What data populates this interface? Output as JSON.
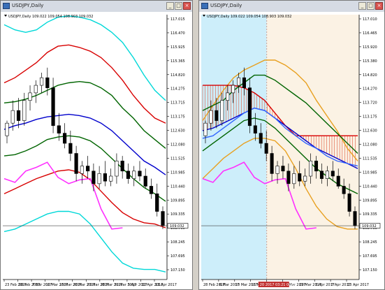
{
  "windows": [
    {
      "title": "USDJPY,Daily"
    },
    {
      "title": "USDJPY,Daily"
    }
  ],
  "chart_data": [
    {
      "type": "line",
      "info": "USDJPY,Daily  109.022 109.054 108.903 109.032",
      "price_labels": [
        "117.015",
        "116.470",
        "115.925",
        "115.365",
        "114.820",
        "114.275",
        "113.715",
        "113.175",
        "112.630",
        "112.080",
        "111.525",
        "110.985",
        "110.440",
        "109.895",
        "109.335",
        "108.790",
        "108.245",
        "107.695",
        "107.150"
      ],
      "date_labels": [
        "23 Feb 2017",
        "28 Feb 2017",
        "7 Mar 2017",
        "10 Mar 2017",
        "15 Mar 2017",
        "20 Mar 2017",
        "23 Mar 2017",
        "28 Mar 2017",
        "31 Mar 2017",
        "5 Apr 2017",
        "10 Apr 2017",
        "13 Apr 2017"
      ],
      "current_price": "109.032",
      "ylim": [
        106.9,
        117.4
      ],
      "series": [
        {
          "color": "#00d8d8",
          "values": [
            117.0,
            116.8,
            116.7,
            116.8,
            117.1,
            117.3,
            117.35,
            117.3,
            117.2,
            117.0,
            116.7,
            116.3,
            115.7,
            115.0,
            114.4,
            114.0
          ]
        },
        {
          "color": "#d80000",
          "values": [
            114.7,
            114.9,
            115.2,
            115.5,
            115.9,
            116.15,
            116.2,
            116.1,
            115.95,
            115.7,
            115.3,
            114.8,
            114.2,
            113.7,
            113.3,
            113.1
          ]
        },
        {
          "color": "#006400",
          "values": [
            113.9,
            113.95,
            114.05,
            114.2,
            114.4,
            114.6,
            114.7,
            114.75,
            114.7,
            114.5,
            114.2,
            113.7,
            113.3,
            112.8,
            112.45,
            112.1
          ]
        },
        {
          "color": "#0000cc",
          "values": [
            112.85,
            113.0,
            113.1,
            113.25,
            113.35,
            113.4,
            113.45,
            113.4,
            113.3,
            113.1,
            112.8,
            112.4,
            112.0,
            111.6,
            111.35,
            111.05
          ]
        },
        {
          "color": "#006400",
          "values": [
            111.8,
            111.85,
            112.0,
            112.2,
            112.45,
            112.55,
            112.6,
            112.55,
            112.4,
            112.1,
            111.7,
            111.3,
            110.9,
            110.55,
            110.3,
            110.0
          ]
        },
        {
          "color": "#d80000",
          "values": [
            110.3,
            110.5,
            110.7,
            110.9,
            111.05,
            111.2,
            111.25,
            111.15,
            110.85,
            110.4,
            109.95,
            109.55,
            109.3,
            109.15,
            109.1,
            108.95
          ]
        },
        {
          "color": "#00d8d8",
          "values": [
            108.8,
            108.9,
            109.1,
            109.3,
            109.5,
            109.6,
            109.6,
            109.5,
            109.1,
            108.55,
            108.0,
            107.55,
            107.35,
            107.3,
            107.3,
            107.2
          ]
        },
        {
          "color": "#ff30ff",
          "values": [
            110.9,
            110.75,
            111.2,
            111.35,
            111.55,
            110.95,
            110.7,
            110.85,
            110.9,
            109.7,
            108.9,
            108.95,
            null,
            null,
            null,
            null
          ]
        }
      ],
      "candles": [
        {
          "o": 112.6,
          "h": 113.2,
          "l": 112.3,
          "c": 113.1
        },
        {
          "o": 113.1,
          "h": 114.0,
          "l": 112.8,
          "c": 113.6
        },
        {
          "o": 113.6,
          "h": 114.1,
          "l": 112.9,
          "c": 113.2
        },
        {
          "o": 113.2,
          "h": 114.3,
          "l": 113.0,
          "c": 114.0
        },
        {
          "o": 114.0,
          "h": 114.6,
          "l": 113.6,
          "c": 114.3
        },
        {
          "o": 114.3,
          "h": 114.8,
          "l": 113.9,
          "c": 114.6
        },
        {
          "o": 114.6,
          "h": 115.1,
          "l": 114.3,
          "c": 114.9
        },
        {
          "o": 114.9,
          "h": 115.3,
          "l": 114.2,
          "c": 114.5
        },
        {
          "o": 114.5,
          "h": 114.9,
          "l": 112.7,
          "c": 113.0
        },
        {
          "o": 113.0,
          "h": 113.5,
          "l": 112.4,
          "c": 112.7
        },
        {
          "o": 112.7,
          "h": 113.1,
          "l": 112.1,
          "c": 112.3
        },
        {
          "o": 112.3,
          "h": 112.8,
          "l": 111.6,
          "c": 111.9
        },
        {
          "o": 111.9,
          "h": 112.2,
          "l": 110.8,
          "c": 111.1
        },
        {
          "o": 111.1,
          "h": 111.6,
          "l": 110.7,
          "c": 111.4
        },
        {
          "o": 111.4,
          "h": 111.8,
          "l": 110.9,
          "c": 111.2
        },
        {
          "o": 111.2,
          "h": 111.5,
          "l": 110.4,
          "c": 110.7
        },
        {
          "o": 110.7,
          "h": 111.4,
          "l": 110.5,
          "c": 111.1
        },
        {
          "o": 111.1,
          "h": 111.6,
          "l": 110.6,
          "c": 110.8
        },
        {
          "o": 110.8,
          "h": 111.3,
          "l": 110.6,
          "c": 111.0
        },
        {
          "o": 111.0,
          "h": 111.9,
          "l": 110.7,
          "c": 111.6
        },
        {
          "o": 111.6,
          "h": 111.8,
          "l": 110.9,
          "c": 111.2
        },
        {
          "o": 111.2,
          "h": 111.5,
          "l": 110.7,
          "c": 110.9
        },
        {
          "o": 110.9,
          "h": 111.4,
          "l": 110.6,
          "c": 111.2
        },
        {
          "o": 111.2,
          "h": 111.6,
          "l": 110.8,
          "c": 111.0
        },
        {
          "o": 111.0,
          "h": 111.3,
          "l": 110.5,
          "c": 110.6
        },
        {
          "o": 110.6,
          "h": 110.9,
          "l": 110.1,
          "c": 110.3
        },
        {
          "o": 110.3,
          "h": 110.7,
          "l": 109.4,
          "c": 109.6
        },
        {
          "o": 109.6,
          "h": 109.8,
          "l": 108.9,
          "c": 109.03
        }
      ]
    },
    {
      "type": "line",
      "info": "USDJPY,Daily  109.022 109.054 108.903 109.032",
      "price_labels": [
        "117.010",
        "116.465",
        "115.920",
        "115.380",
        "114.820",
        "114.270",
        "113.720",
        "113.175",
        "112.630",
        "112.080",
        "111.535",
        "110.985",
        "110.440",
        "109.895",
        "109.335",
        "108.790",
        "108.245",
        "107.695",
        "107.150"
      ],
      "date_labels": [
        "28 Feb 2017",
        "6 Mar 2017",
        "10 Mar 2017",
        "16 Mar 2017",
        "21 Mar 2017",
        "24 Mar 2017",
        "29 Mar 2017",
        "3 Apr 2017",
        "7 Apr 2017",
        "13 Apr 2017"
      ],
      "highlight_label": "20 2017 03:21 00:00",
      "current_price": "109.032",
      "ylim": [
        106.9,
        117.4
      ],
      "series": [
        {
          "color": "#e8a020",
          "values": [
            113.2,
            113.8,
            114.4,
            114.9,
            115.2,
            115.4,
            115.6,
            115.6,
            115.4,
            115.1,
            114.7,
            114.0,
            113.4,
            112.8,
            112.1,
            111.6
          ]
        },
        {
          "color": "#e8a020",
          "values": [
            110.9,
            111.3,
            111.7,
            112.0,
            112.3,
            112.5,
            112.5,
            112.4,
            112.0,
            111.3,
            110.5,
            109.8,
            109.3,
            109.0,
            108.9,
            108.9
          ]
        },
        {
          "color": "#d80000",
          "values": [
            114.6,
            114.6,
            114.6,
            114.6,
            114.5,
            114.3,
            114.0,
            113.5,
            113.0,
            112.6,
            112.6,
            112.6,
            112.6,
            112.6,
            112.6,
            112.6
          ]
        },
        {
          "color": "#0000cc",
          "values": [
            112.8,
            112.9,
            113.1,
            113.3,
            113.5,
            113.7,
            113.6,
            113.3,
            113.0,
            112.7,
            112.4,
            112.1,
            111.9,
            111.7,
            111.5,
            111.3
          ]
        },
        {
          "color": "#3366ff",
          "values": [
            112.5,
            112.6,
            112.9,
            113.2,
            113.5,
            113.7,
            113.6,
            113.3,
            112.9,
            112.6,
            112.3,
            112.1,
            111.8,
            111.6,
            111.5,
            111.4
          ]
        },
        {
          "color": "#006400",
          "values": [
            113.6,
            113.8,
            114.0,
            114.4,
            114.7,
            115.0,
            115.0,
            114.8,
            114.5,
            114.2,
            113.9,
            113.5,
            113.1,
            112.7,
            112.3,
            111.9
          ]
        },
        {
          "color": "#006400",
          "values": [
            112.0,
            112.3,
            112.6,
            112.9,
            113.2,
            113.3,
            113.2,
            112.9,
            112.5,
            112.1,
            111.7,
            111.3,
            111.0,
            110.7,
            110.5,
            110.3
          ]
        },
        {
          "color": "#ff30ff",
          "values": [
            110.9,
            110.75,
            111.2,
            111.35,
            111.55,
            110.95,
            110.7,
            110.85,
            110.9,
            109.7,
            108.9,
            108.95,
            null,
            null,
            null,
            null
          ]
        }
      ],
      "candles": [
        {
          "o": 112.6,
          "h": 113.2,
          "l": 112.3,
          "c": 113.1
        },
        {
          "o": 113.1,
          "h": 114.0,
          "l": 112.8,
          "c": 113.6
        },
        {
          "o": 113.6,
          "h": 114.1,
          "l": 112.9,
          "c": 113.2
        },
        {
          "o": 113.2,
          "h": 114.3,
          "l": 113.0,
          "c": 114.0
        },
        {
          "o": 114.0,
          "h": 114.6,
          "l": 113.6,
          "c": 114.3
        },
        {
          "o": 114.3,
          "h": 114.8,
          "l": 113.9,
          "c": 114.6
        },
        {
          "o": 114.6,
          "h": 115.1,
          "l": 114.3,
          "c": 114.9
        },
        {
          "o": 114.9,
          "h": 115.3,
          "l": 114.2,
          "c": 114.5
        },
        {
          "o": 114.5,
          "h": 114.9,
          "l": 112.7,
          "c": 113.0
        },
        {
          "o": 113.0,
          "h": 113.5,
          "l": 112.4,
          "c": 112.7
        },
        {
          "o": 112.7,
          "h": 113.1,
          "l": 112.1,
          "c": 112.3
        },
        {
          "o": 112.3,
          "h": 112.8,
          "l": 111.6,
          "c": 111.9
        },
        {
          "o": 111.9,
          "h": 112.2,
          "l": 110.8,
          "c": 111.1
        },
        {
          "o": 111.1,
          "h": 111.6,
          "l": 110.7,
          "c": 111.4
        },
        {
          "o": 111.4,
          "h": 111.8,
          "l": 110.9,
          "c": 111.2
        },
        {
          "o": 111.2,
          "h": 111.5,
          "l": 110.4,
          "c": 110.7
        },
        {
          "o": 110.7,
          "h": 111.4,
          "l": 110.5,
          "c": 111.1
        },
        {
          "o": 111.1,
          "h": 111.6,
          "l": 110.6,
          "c": 110.8
        },
        {
          "o": 110.8,
          "h": 111.3,
          "l": 110.6,
          "c": 111.0
        },
        {
          "o": 111.0,
          "h": 111.9,
          "l": 110.7,
          "c": 111.6
        },
        {
          "o": 111.6,
          "h": 111.8,
          "l": 110.9,
          "c": 111.2
        },
        {
          "o": 111.2,
          "h": 111.5,
          "l": 110.7,
          "c": 110.9
        },
        {
          "o": 110.9,
          "h": 111.4,
          "l": 110.6,
          "c": 111.2
        },
        {
          "o": 111.2,
          "h": 111.6,
          "l": 110.8,
          "c": 111.0
        },
        {
          "o": 111.0,
          "h": 111.3,
          "l": 110.5,
          "c": 110.6
        },
        {
          "o": 110.6,
          "h": 110.9,
          "l": 110.1,
          "c": 110.3
        },
        {
          "o": 110.3,
          "h": 110.7,
          "l": 109.4,
          "c": 109.6
        },
        {
          "o": 109.6,
          "h": 109.8,
          "l": 108.9,
          "c": 109.03
        }
      ]
    }
  ]
}
